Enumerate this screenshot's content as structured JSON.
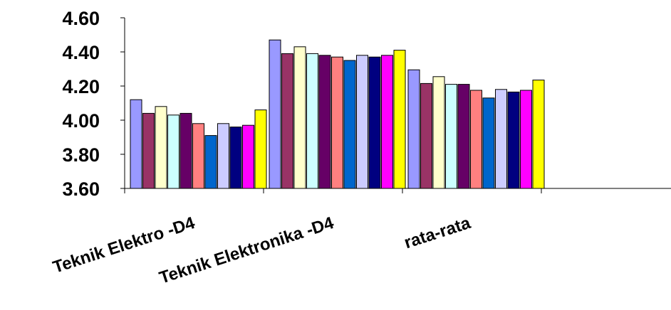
{
  "chart_data": {
    "type": "bar",
    "title": "",
    "xlabel": "",
    "ylabel": "",
    "ylim": [
      3.6,
      4.6
    ],
    "yticks": [
      "3.60",
      "3.80",
      "4.00",
      "4.20",
      "4.40",
      "4.60"
    ],
    "grid": false,
    "legend": "none",
    "categories": [
      "Teknik Elektro -D4",
      "Teknik Elektronika -D4",
      "rata-rata"
    ],
    "series": [
      {
        "color": "#9999ff",
        "values": [
          4.12,
          4.47,
          4.295
        ]
      },
      {
        "color": "#993366",
        "values": [
          4.04,
          4.39,
          4.215
        ]
      },
      {
        "color": "#ffffcc",
        "values": [
          4.08,
          4.43,
          4.255
        ]
      },
      {
        "color": "#ccffff",
        "values": [
          4.03,
          4.39,
          4.21
        ]
      },
      {
        "color": "#660066",
        "values": [
          4.04,
          4.38,
          4.21
        ]
      },
      {
        "color": "#ff8080",
        "values": [
          3.98,
          4.37,
          4.175
        ]
      },
      {
        "color": "#0066cc",
        "values": [
          3.91,
          4.35,
          4.13
        ]
      },
      {
        "color": "#ccccff",
        "values": [
          3.98,
          4.38,
          4.18
        ]
      },
      {
        "color": "#000080",
        "values": [
          3.96,
          4.37,
          4.165
        ]
      },
      {
        "color": "#ff00ff",
        "values": [
          3.97,
          4.38,
          4.175
        ]
      },
      {
        "color": "#ffff00",
        "values": [
          4.06,
          4.41,
          4.235
        ]
      }
    ]
  }
}
